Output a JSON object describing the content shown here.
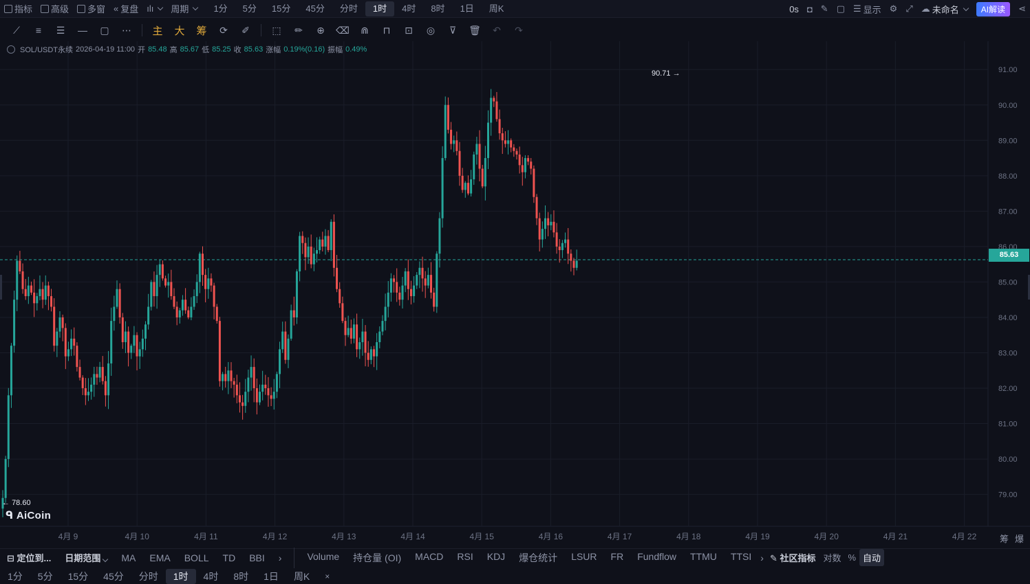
{
  "topbar": {
    "left_items": [
      "指标",
      "高级",
      "多窗",
      "复盘"
    ],
    "period_label": "周期",
    "timeframes": [
      "1分",
      "5分",
      "15分",
      "45分",
      "分时",
      "1时",
      "4时",
      "8时",
      "1日",
      "周K"
    ],
    "active_timeframe": "1时",
    "right": {
      "timer": "0s",
      "display": "显示",
      "layout_name": "未命名",
      "ai_button": "AI解读"
    }
  },
  "drawbar": {
    "gold_tools": [
      "主",
      "大",
      "筹"
    ]
  },
  "legend": {
    "symbol": "SOL/USDT永续",
    "datetime": "2026-04-19 11:00",
    "open_label": "开",
    "open": "85.48",
    "high_label": "高",
    "high": "85.67",
    "low_label": "低",
    "low": "85.25",
    "close_label": "收",
    "close": "85.63",
    "change_label": "涨幅",
    "change": "0.19%(0.16)",
    "amp_label": "振幅",
    "amp": "0.49%"
  },
  "chart_data": {
    "type": "candlestick",
    "ylim": [
      78.1,
      91.8
    ],
    "yticks": [
      "91.00",
      "90.00",
      "89.00",
      "88.00",
      "87.00",
      "86.00",
      "85.00",
      "84.00",
      "83.00",
      "82.00",
      "81.00",
      "80.00",
      "79.00"
    ],
    "xticks": [
      "4月 9",
      "4月 10",
      "4月 11",
      "4月 12",
      "4月 13",
      "4月 14",
      "4月 15",
      "4月 16",
      "4月 17",
      "4月 18",
      "4月 19",
      "4月 20",
      "4月 21",
      "4月 22"
    ],
    "current_price": "85.63",
    "high_marker": "90.71",
    "low_marker": "78.60",
    "up_color": "#26a69a",
    "down_color": "#ef5350",
    "closes": [
      78.9,
      80.0,
      81.8,
      83.2,
      84.5,
      85.6,
      85.3,
      84.8,
      84.6,
      84.9,
      84.7,
      84.4,
      84.6,
      84.8,
      84.5,
      84.9,
      84.6,
      84.3,
      83.2,
      83.6,
      84.0,
      83.7,
      82.9,
      83.1,
      83.4,
      83.2,
      82.6,
      82.3,
      82.0,
      81.8,
      81.9,
      82.1,
      82.4,
      82.3,
      82.6,
      82.2,
      81.8,
      82.7,
      83.9,
      84.3,
      84.8,
      84.0,
      83.3,
      83.6,
      83.0,
      83.2,
      83.5,
      82.9,
      83.1,
      83.4,
      83.8,
      84.3,
      85.0,
      84.6,
      85.2,
      85.5,
      85.1,
      84.9,
      85.0,
      84.6,
      84.3,
      84.0,
      84.2,
      84.5,
      84.2,
      84.0,
      84.3,
      84.6,
      85.0,
      85.8,
      85.2,
      84.8,
      85.1,
      84.9,
      84.3,
      83.9,
      82.2,
      82.4,
      82.2,
      82.5,
      82.2,
      82.1,
      81.8,
      81.6,
      81.5,
      81.9,
      82.3,
      82.6,
      82.0,
      81.6,
      81.9,
      82.1,
      82.0,
      81.8,
      81.7,
      81.9,
      82.4,
      83.1,
      83.6,
      82.8,
      83.4,
      84.2,
      84.0,
      85.3,
      86.3,
      86.1,
      85.7,
      86.0,
      85.5,
      85.8,
      85.9,
      86.2,
      86.0,
      86.3,
      85.9,
      86.7,
      85.4,
      84.8,
      84.4,
      83.9,
      83.5,
      83.7,
      83.4,
      83.8,
      83.1,
      83.3,
      83.6,
      83.0,
      82.8,
      83.1,
      82.9,
      83.3,
      83.6,
      83.9,
      84.3,
      84.7,
      85.1,
      85.0,
      84.7,
      84.5,
      84.9,
      85.3,
      84.8,
      84.6,
      84.9,
      85.2,
      85.4,
      85.1,
      84.9,
      85.2,
      84.7,
      84.3,
      85.8,
      86.8,
      88.5,
      90.0,
      89.3,
      88.9,
      89.0,
      88.7,
      88.0,
      87.6,
      87.8,
      87.5,
      87.9,
      88.6,
      88.9,
      88.2,
      87.7,
      88.5,
      89.5,
      90.2,
      90.1,
      89.6,
      89.2,
      89.0,
      88.9,
      89.0,
      88.8,
      88.7,
      88.6,
      88.3,
      88.1,
      88.5,
      88.4,
      88.2,
      87.4,
      86.8,
      86.2,
      86.5,
      86.8,
      86.6,
      86.7,
      86.4,
      86.0,
      85.9,
      86.1,
      86.2,
      85.8,
      85.6,
      85.4,
      85.6
    ]
  },
  "indicator_bar": {
    "locate": "定位到...",
    "date_range": "日期范围",
    "main_indicators": [
      "MA",
      "EMA",
      "BOLL",
      "TD",
      "BBI"
    ],
    "sub_indicators": [
      "Volume",
      "持仓量 (OI)",
      "MACD",
      "RSI",
      "KDJ",
      "爆仓统计",
      "LSUR",
      "FR",
      "Fundflow",
      "TTMU",
      "TTSI"
    ],
    "community": "社区指标",
    "log": "对数",
    "percent": "%",
    "auto": "自动"
  },
  "bottom_timeframes": {
    "items": [
      "1分",
      "5分",
      "15分",
      "45分",
      "分时",
      "1时",
      "4时",
      "8时",
      "1日",
      "周K"
    ],
    "active": "1时",
    "close": "×"
  },
  "logo_text": "AiCoin",
  "side_labels": [
    "筹",
    "爆"
  ]
}
